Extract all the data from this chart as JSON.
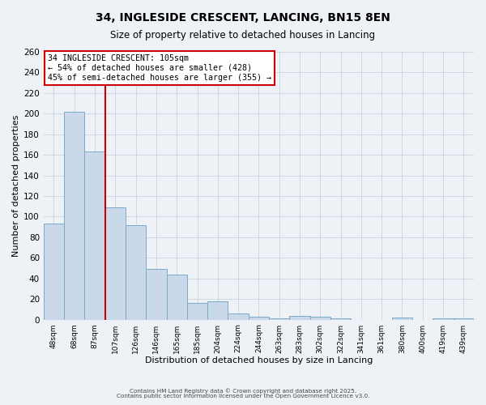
{
  "title1": "34, INGLESIDE CRESCENT, LANCING, BN15 8EN",
  "title2": "Size of property relative to detached houses in Lancing",
  "xlabel": "Distribution of detached houses by size in Lancing",
  "ylabel": "Number of detached properties",
  "bar_labels": [
    "48sqm",
    "68sqm",
    "87sqm",
    "107sqm",
    "126sqm",
    "146sqm",
    "165sqm",
    "185sqm",
    "204sqm",
    "224sqm",
    "244sqm",
    "263sqm",
    "283sqm",
    "302sqm",
    "322sqm",
    "341sqm",
    "361sqm",
    "380sqm",
    "400sqm",
    "419sqm",
    "439sqm"
  ],
  "bar_values": [
    93,
    202,
    163,
    109,
    92,
    49,
    44,
    16,
    18,
    6,
    3,
    1,
    4,
    3,
    1,
    0,
    0,
    2,
    0,
    1,
    1
  ],
  "bar_color": "#c9d9ea",
  "bar_edge_color": "#7aaac8",
  "vline_color": "#cc0000",
  "vline_index": 2.5,
  "ylim": [
    0,
    260
  ],
  "yticks": [
    0,
    20,
    40,
    60,
    80,
    100,
    120,
    140,
    160,
    180,
    200,
    220,
    240,
    260
  ],
  "annotation_title": "34 INGLESIDE CRESCENT: 105sqm",
  "annotation_line1": "← 54% of detached houses are smaller (428)",
  "annotation_line2": "45% of semi-detached houses are larger (355) →",
  "annotation_box_color": "#ffffff",
  "annotation_box_edge": "#cc0000",
  "grid_color": "#c8d4e0",
  "bg_color": "#eef2f7",
  "footer1": "Contains HM Land Registry data © Crown copyright and database right 2025.",
  "footer2": "Contains public sector information licensed under the Open Government Licence v3.0."
}
